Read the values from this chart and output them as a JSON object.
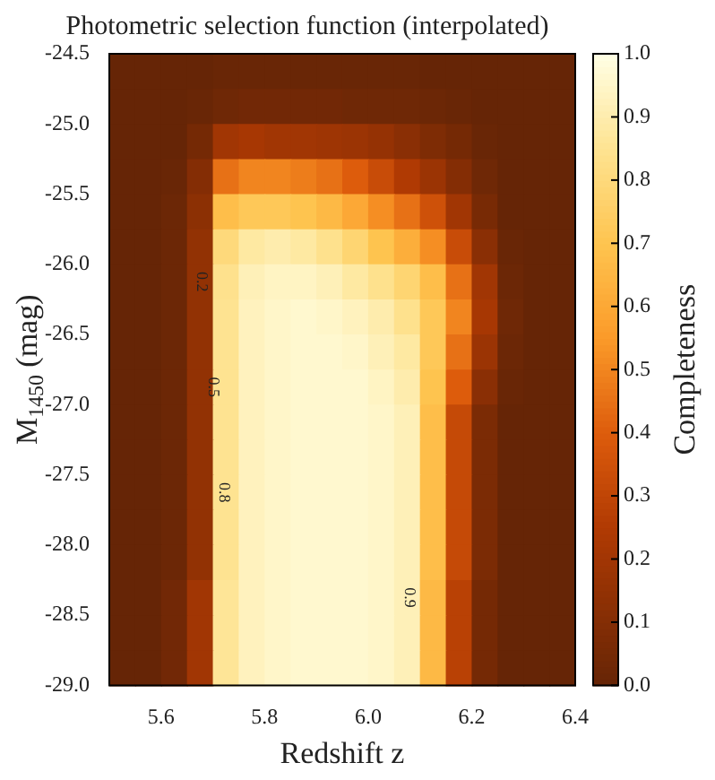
{
  "chart_data": {
    "type": "heatmap",
    "title": "Photometric selection function (interpolated)",
    "xlabel": "Redshift z",
    "ylabel": "M$_{1450}$ (mag)",
    "clabel": "Completeness",
    "xlim": [
      5.5,
      6.4
    ],
    "xticks": [
      5.6,
      5.8,
      {
        "value": 6,
        "label": "6.0"
      },
      6.2,
      6.4
    ],
    "ylim": [
      -29,
      -24.5
    ],
    "yticks": [
      {
        "value": -29,
        "label": "-29.0"
      },
      -28.5,
      {
        "value": -28,
        "label": "-28.0"
      },
      -27.5,
      {
        "value": -27,
        "label": "-27.0"
      },
      -26.5,
      {
        "value": -26,
        "label": "-26.0"
      },
      -25.5,
      {
        "value": -25,
        "label": "-25.0"
      },
      -24.5
    ],
    "clim": [
      0,
      1
    ],
    "cticks": [
      {
        "value": 0,
        "label": "0.0"
      },
      0.1,
      0.2,
      0.3,
      0.4,
      0.5,
      0.6,
      0.7,
      0.8,
      0.9,
      {
        "value": 1,
        "label": "1.0"
      }
    ],
    "cells": [
      [
        0,
        0,
        0,
        0,
        0.01,
        0.01,
        0.01,
        0.01,
        0.01,
        0.01,
        0.01,
        0.01,
        0,
        0,
        0,
        0,
        0,
        0
      ],
      [
        0,
        0,
        0,
        0.01,
        0.03,
        0.04,
        0.04,
        0.04,
        0.04,
        0.03,
        0.03,
        0.03,
        0.02,
        0.01,
        0,
        0,
        0,
        0
      ],
      [
        0,
        0,
        0,
        0.05,
        0.2,
        0.22,
        0.2,
        0.2,
        0.19,
        0.18,
        0.16,
        0.12,
        0.08,
        0.05,
        0.01,
        0,
        0,
        0
      ],
      [
        0,
        0,
        0.01,
        0.1,
        0.45,
        0.5,
        0.5,
        0.48,
        0.45,
        0.4,
        0.33,
        0.25,
        0.18,
        0.1,
        0.03,
        0,
        0,
        0
      ],
      [
        0,
        0,
        0.02,
        0.13,
        0.68,
        0.72,
        0.72,
        0.7,
        0.66,
        0.6,
        0.52,
        0.45,
        0.35,
        0.2,
        0.06,
        0,
        0,
        0
      ],
      [
        0,
        0,
        0.02,
        0.15,
        0.8,
        0.88,
        0.9,
        0.88,
        0.84,
        0.78,
        0.7,
        0.62,
        0.52,
        0.33,
        0.12,
        0.01,
        0,
        0
      ],
      [
        0,
        0,
        0.02,
        0.15,
        0.84,
        0.92,
        0.94,
        0.94,
        0.92,
        0.88,
        0.84,
        0.78,
        0.68,
        0.45,
        0.2,
        0.02,
        0,
        0
      ],
      [
        0,
        0,
        0.02,
        0.15,
        0.85,
        0.93,
        0.95,
        0.96,
        0.95,
        0.93,
        0.9,
        0.84,
        0.72,
        0.5,
        0.22,
        0.03,
        0,
        0
      ],
      [
        0,
        0,
        0.02,
        0.15,
        0.85,
        0.93,
        0.95,
        0.96,
        0.96,
        0.95,
        0.92,
        0.88,
        0.72,
        0.45,
        0.18,
        0.02,
        0,
        0
      ],
      [
        0,
        0,
        0.02,
        0.15,
        0.85,
        0.93,
        0.95,
        0.96,
        0.96,
        0.96,
        0.94,
        0.9,
        0.7,
        0.4,
        0.12,
        0.01,
        0,
        0
      ],
      [
        0,
        0,
        0.02,
        0.15,
        0.85,
        0.93,
        0.95,
        0.96,
        0.96,
        0.96,
        0.95,
        0.92,
        0.68,
        0.32,
        0.07,
        0,
        0,
        0
      ],
      [
        0,
        0,
        0.02,
        0.15,
        0.85,
        0.93,
        0.95,
        0.96,
        0.96,
        0.96,
        0.95,
        0.92,
        0.68,
        0.32,
        0.07,
        0,
        0,
        0
      ],
      [
        0,
        0,
        0.02,
        0.15,
        0.85,
        0.93,
        0.95,
        0.96,
        0.96,
        0.96,
        0.95,
        0.92,
        0.68,
        0.32,
        0.07,
        0,
        0,
        0
      ],
      [
        0,
        0,
        0.02,
        0.15,
        0.85,
        0.93,
        0.95,
        0.96,
        0.96,
        0.96,
        0.95,
        0.92,
        0.68,
        0.32,
        0.07,
        0,
        0,
        0
      ],
      [
        0,
        0,
        0.02,
        0.15,
        0.85,
        0.93,
        0.95,
        0.96,
        0.96,
        0.96,
        0.95,
        0.92,
        0.68,
        0.32,
        0.07,
        0,
        0,
        0
      ],
      [
        0,
        0,
        0.04,
        0.2,
        0.86,
        0.93,
        0.95,
        0.96,
        0.96,
        0.96,
        0.95,
        0.92,
        0.66,
        0.28,
        0.05,
        0,
        0,
        0
      ],
      [
        0,
        0,
        0.04,
        0.2,
        0.86,
        0.93,
        0.95,
        0.96,
        0.96,
        0.96,
        0.95,
        0.92,
        0.66,
        0.28,
        0.05,
        0,
        0,
        0
      ],
      [
        0,
        0,
        0.04,
        0.2,
        0.86,
        0.93,
        0.95,
        0.96,
        0.96,
        0.96,
        0.95,
        0.92,
        0.66,
        0.28,
        0.05,
        0,
        0,
        0
      ]
    ],
    "annotations": [
      "0.2",
      "0.5",
      "0.8",
      "0.9"
    ]
  }
}
